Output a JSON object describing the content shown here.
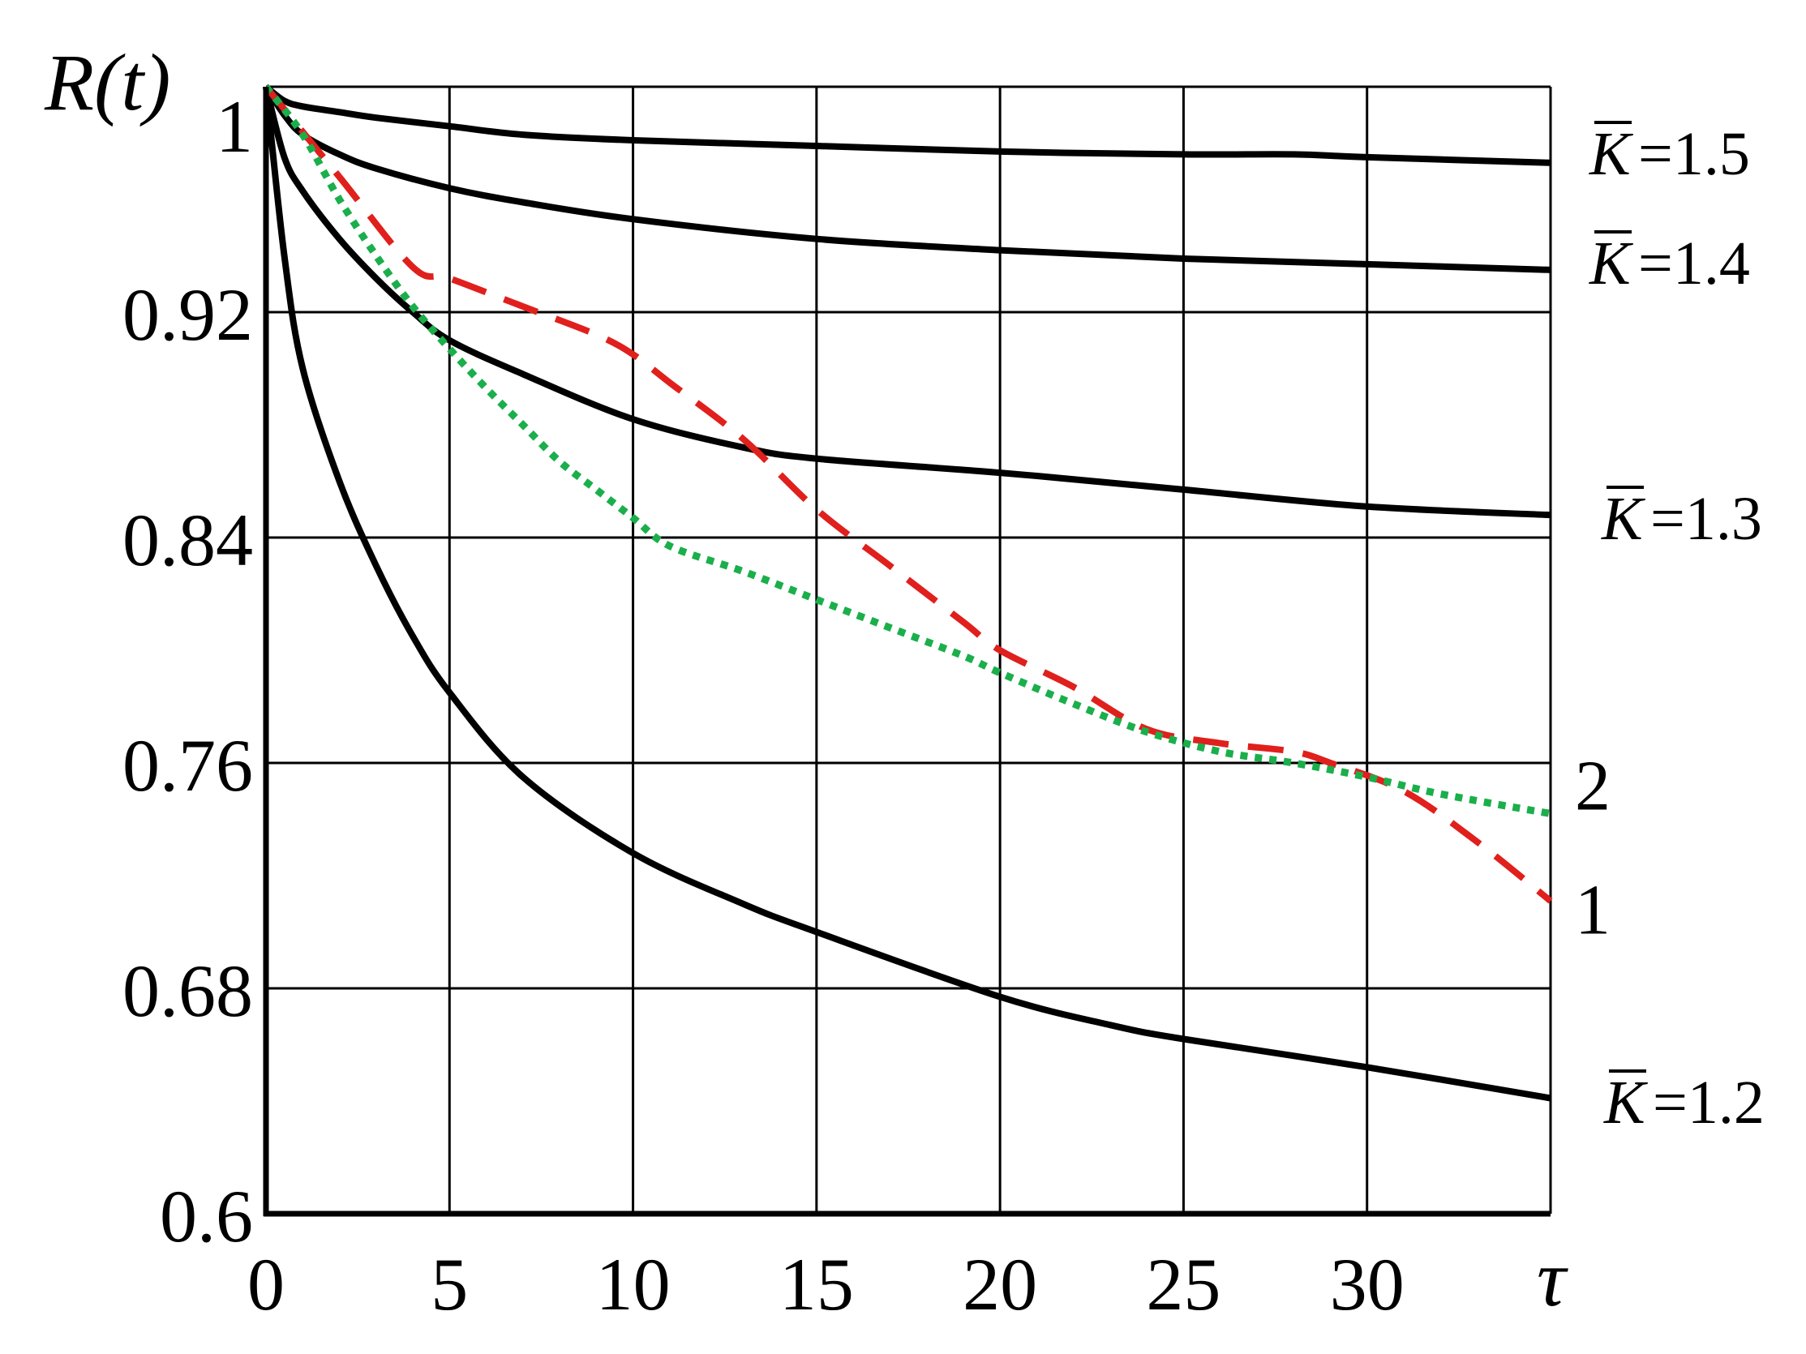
{
  "chart_data": {
    "type": "line",
    "title": "",
    "ylabel": "R(t)",
    "xlabel": "τ",
    "xlim": [
      0,
      35
    ],
    "ylim": [
      0.6,
      1.0
    ],
    "xticks": [
      0,
      5,
      10,
      15,
      20,
      25,
      30
    ],
    "xtick_labels": [
      "0",
      "5",
      "10",
      "15",
      "20",
      "25",
      "30"
    ],
    "yticks": [
      0.6,
      0.68,
      0.76,
      0.84,
      0.92,
      1.0
    ],
    "ytick_labels": [
      "0.6",
      "0.68",
      "0.76",
      "0.84",
      "0.92",
      "1"
    ],
    "grid": true,
    "series": [
      {
        "name": "K̄ = 1.5",
        "label_var": "K",
        "label_text": "=1.5",
        "style": "solid",
        "color": "#000000",
        "x": [
          0,
          0.5,
          1,
          2,
          3,
          5,
          7,
          10,
          15,
          20,
          25,
          28,
          30,
          35
        ],
        "y": [
          1.0,
          0.995,
          0.993,
          0.991,
          0.989,
          0.986,
          0.983,
          0.981,
          0.979,
          0.977,
          0.976,
          0.976,
          0.975,
          0.973
        ]
      },
      {
        "name": "K̄ = 1.4",
        "label_var": "K",
        "label_text": "=1.4",
        "style": "solid",
        "color": "#000000",
        "x": [
          0,
          0.5,
          1,
          2,
          3,
          5,
          7,
          10,
          15,
          20,
          25,
          30,
          35
        ],
        "y": [
          1.0,
          0.99,
          0.983,
          0.976,
          0.971,
          0.964,
          0.959,
          0.953,
          0.946,
          0.942,
          0.939,
          0.937,
          0.935
        ]
      },
      {
        "name": "K̄ = 1.3",
        "label_var": "K",
        "label_text": "=1.3",
        "style": "solid",
        "color": "#000000",
        "x": [
          0,
          0.5,
          1,
          2,
          3,
          4,
          5,
          7,
          10,
          13,
          15,
          20,
          25,
          30,
          35
        ],
        "y": [
          1.0,
          0.975,
          0.963,
          0.946,
          0.932,
          0.92,
          0.91,
          0.898,
          0.882,
          0.872,
          0.868,
          0.863,
          0.857,
          0.851,
          0.848
        ]
      },
      {
        "name": "K̄ = 1.2",
        "label_var": "K",
        "label_text": "=1.2",
        "style": "solid",
        "color": "#000000",
        "x": [
          0,
          0.5,
          1,
          2,
          3,
          4,
          5,
          7,
          10,
          13,
          15,
          20,
          23,
          25,
          30,
          35
        ],
        "y": [
          1.0,
          0.94,
          0.9,
          0.86,
          0.83,
          0.805,
          0.785,
          0.755,
          0.728,
          0.71,
          0.7,
          0.677,
          0.667,
          0.662,
          0.652,
          0.641
        ]
      },
      {
        "name": "1",
        "style": "dashed",
        "color": "#e0201c",
        "x": [
          0,
          2,
          4,
          5,
          7,
          9,
          10,
          11,
          13,
          15,
          17,
          19,
          20,
          22,
          24,
          26,
          28,
          29,
          31,
          33,
          35
        ],
        "y": [
          1.0,
          0.968,
          0.936,
          0.932,
          0.922,
          0.912,
          0.905,
          0.895,
          0.875,
          0.85,
          0.83,
          0.81,
          0.8,
          0.787,
          0.772,
          0.767,
          0.764,
          0.76,
          0.75,
          0.732,
          0.711
        ]
      },
      {
        "name": "2",
        "style": "dotted",
        "color": "#1aaf4b",
        "x": [
          0,
          1,
          2,
          3,
          4,
          5,
          6,
          7,
          8,
          9,
          10,
          11,
          13,
          15,
          17,
          19,
          20,
          22,
          24,
          26,
          28,
          30,
          32,
          35
        ],
        "y": [
          1.0,
          0.983,
          0.96,
          0.94,
          0.922,
          0.907,
          0.893,
          0.88,
          0.867,
          0.857,
          0.847,
          0.837,
          0.828,
          0.818,
          0.808,
          0.798,
          0.792,
          0.781,
          0.771,
          0.764,
          0.76,
          0.755,
          0.749,
          0.742
        ]
      }
    ]
  }
}
